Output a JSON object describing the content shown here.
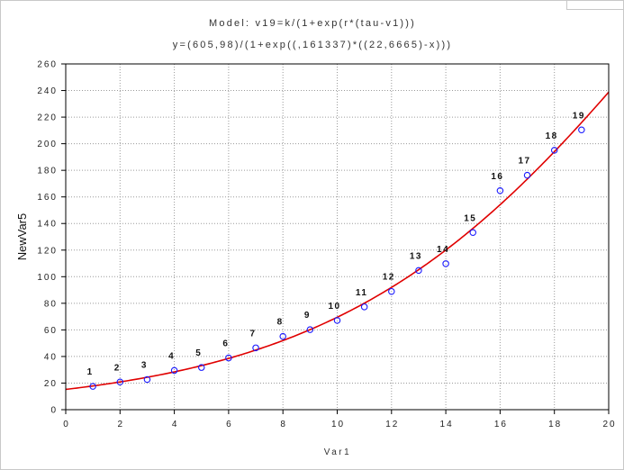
{
  "chart_data": {
    "type": "scatter",
    "title_line1": "Model: v19=k/(1+exp(r*(tau-v1)))",
    "title_line2": "y=(605,98)/(1+exp((,161337)*((22,6665)-x)))",
    "xlabel": "Var1",
    "ylabel": "NewVar5",
    "xlim": [
      0,
      20
    ],
    "ylim": [
      0,
      260
    ],
    "x_ticks": [
      "0",
      "2",
      "4",
      "6",
      "8",
      "10",
      "12",
      "14",
      "16",
      "18",
      "20"
    ],
    "y_ticks": [
      "0",
      "20",
      "40",
      "60",
      "80",
      "100",
      "120",
      "140",
      "160",
      "180",
      "200",
      "220",
      "240",
      "260"
    ],
    "grid": true,
    "series": [
      {
        "x": [
          1,
          2,
          3,
          4,
          5,
          6,
          7,
          8,
          9,
          10,
          11,
          12,
          13,
          14,
          15,
          16,
          17,
          18,
          19
        ],
        "y": [
          17.5,
          20.8,
          22.7,
          29.5,
          31.7,
          38.9,
          46.5,
          55.1,
          60.2,
          67.1,
          77.3,
          88.9,
          104.7,
          109.8,
          133.2,
          164.7,
          176.3,
          195.1,
          210.4
        ],
        "point_labels": [
          "1",
          "2",
          "3",
          "4",
          "5",
          "6",
          "7",
          "8",
          "9",
          "10",
          "11",
          "12",
          "13",
          "14",
          "15",
          "16",
          "17",
          "18",
          "19"
        ],
        "marker": "circle",
        "color": "#1a1aff"
      }
    ],
    "fit": {
      "k": 605.98,
      "r": 0.161337,
      "tau": 22.6665,
      "color": "#e00000"
    }
  }
}
